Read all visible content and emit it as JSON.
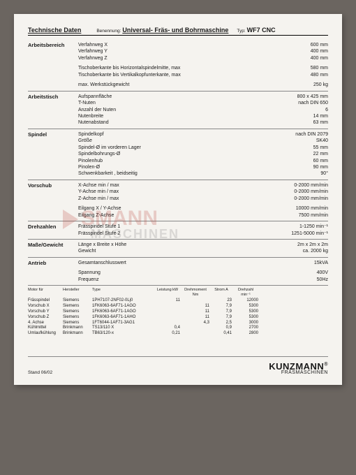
{
  "header": {
    "title": "Technische Daten",
    "sublabel": "Benennung:",
    "subtitle": "Universal- Fräs- und Bohrmaschine",
    "typlabel": "Typ:",
    "typ": "WF7 CNC"
  },
  "sections": [
    {
      "title": "Arbeitsbereich",
      "rows": [
        {
          "l": "Verfahrweg X",
          "r": "600 mm"
        },
        {
          "l": "Verfahrweg Y",
          "r": "400 mm"
        },
        {
          "l": "Verfahrweg Z",
          "r": "400 mm"
        },
        {
          "gap": true
        },
        {
          "l": "Tischoberkante bis Horizontalspindelmitte, max",
          "r": "580 mm"
        },
        {
          "l": "Tischoberkante bis Vertikalkopfunterkante, max",
          "r": "480 mm"
        },
        {
          "gap": true
        },
        {
          "l": "max. Werkstückgewicht",
          "r": "250 kg"
        }
      ]
    },
    {
      "title": "Arbeitstisch",
      "rows": [
        {
          "l": "Aufspannfläche",
          "r": "800 x 425 mm"
        },
        {
          "l": "T-Nuten",
          "r": "nach DIN 650"
        },
        {
          "l": "Anzahl der Nuten",
          "r": "6"
        },
        {
          "l": "Nutenbreite",
          "r": "14 mm"
        },
        {
          "l": "Nutenabstand",
          "r": "63 mm"
        }
      ]
    },
    {
      "title": "Spindel",
      "rows": [
        {
          "l": "Spindelkopf",
          "r": "nach DIN 2079"
        },
        {
          "l": "Größe",
          "r": "SK40"
        },
        {
          "l": "Spindel-Ø im vorderen Lager",
          "r": "55 mm"
        },
        {
          "l": "Spindelbohrungs-Ø",
          "r": "22 mm"
        },
        {
          "l": "Pinolenhub",
          "r": "60 mm"
        },
        {
          "l": "Pinolen-Ø",
          "r": "90 mm"
        },
        {
          "l": "Schwenkbarkeit , beidseitig",
          "r": "90°"
        }
      ]
    },
    {
      "title": "Vorschub",
      "rows": [
        {
          "l": "X-Achse min / max",
          "r": "0-2000 mm/min"
        },
        {
          "l": "Y-Achse min / max",
          "r": "0-2000 mm/min"
        },
        {
          "l": "Z-Achse min / max",
          "r": "0-2000 mm/min"
        },
        {
          "gap": true
        },
        {
          "l": "Eilgang X / Y-Achse",
          "r": "10000 mm/min"
        },
        {
          "l": "Eilgang Z-Achse",
          "r": "7500 mm/min"
        }
      ]
    },
    {
      "title": "Drehzahlen",
      "rows": [
        {
          "l": "Frässpindel Stufe 1",
          "r": "1-1250 min⁻¹"
        },
        {
          "l": "Frässpindel Stufe 2",
          "r": "1251-5000 min⁻¹"
        }
      ]
    },
    {
      "title": "Maße/Gewicht",
      "rows": [
        {
          "l": "Länge x Breite x Höhe",
          "r": "2m x 2m x 2m"
        },
        {
          "l": "Gewicht",
          "r": "ca. 2000 kg"
        }
      ]
    },
    {
      "title": "Antrieb",
      "rows": [
        {
          "l": "Gesamtanschlusswert",
          "r": "15kVA"
        },
        {
          "gap": true
        },
        {
          "l": "Spannung",
          "r": "400V"
        },
        {
          "l": "Frequenz",
          "r": "50Hz"
        }
      ]
    }
  ],
  "motor": {
    "head": [
      "Motor für",
      "Hersteller",
      "Type",
      "Leistung kW",
      "Drehmoment Nm",
      "Strom A",
      "Drehzahl min⁻¹"
    ],
    "rows": [
      [
        "Frässpindel",
        "Siemens",
        "1PH7107-2NF02-0Lj0",
        "11",
        "",
        "23",
        "12000"
      ],
      [
        "Vorschub X",
        "Siemens",
        "1FK6063-6AF71-1AGO",
        "",
        "11",
        "7,9",
        "5300"
      ],
      [
        "Vorschub Y",
        "Siemens",
        "1FK6063-6AF71-1AGO",
        "",
        "11",
        "7,9",
        "5300"
      ],
      [
        "Vorschub Z",
        "Siemens",
        "1FK6063-6AF71-1AHO",
        "",
        "11",
        "7,9",
        "5300"
      ],
      [
        "4. Achse",
        "Siemens",
        "1FT6044-1AF71-3AG1",
        "",
        "4,3",
        "2,5",
        "3000"
      ],
      [
        "Kühlmittel",
        "Brinkmann",
        "TS13/110 X",
        "0,4",
        "",
        "0,9",
        "2700"
      ],
      [
        "Umlaufkühlung",
        "Brinkmann",
        "TB63/120-x",
        "0,21",
        "",
        "0,41",
        "2800"
      ]
    ]
  },
  "footer": {
    "stand": "Stand 06/02",
    "brand1": "KUNZMANN",
    "brand2": "FRÄSMASCHINEN"
  },
  "watermark": {
    "line1": "SMANN",
    "line2": "MASCHINEN"
  }
}
